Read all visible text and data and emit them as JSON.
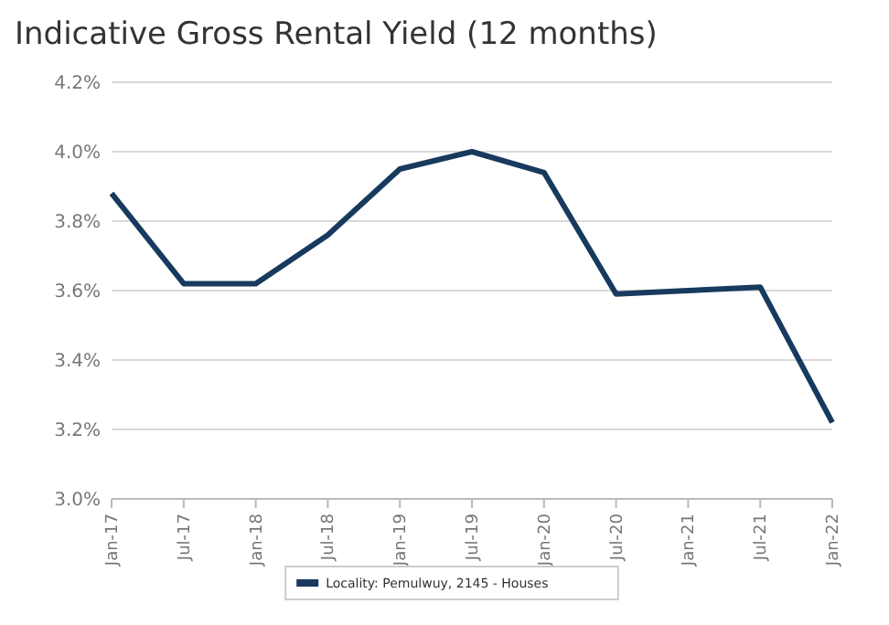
{
  "chart_data": {
    "type": "line",
    "title": "Indicative Gross Rental Yield (12 months)",
    "categories": [
      "Jan-17",
      "Jul-17",
      "Jan-18",
      "Jul-18",
      "Jan-19",
      "Jul-19",
      "Jan-20",
      "Jul-20",
      "Jan-21",
      "Jul-21",
      "Jan-22"
    ],
    "series": [
      {
        "name": "Locality: Pemulwuy, 2145 - Houses",
        "color": "#173a5e",
        "values": [
          3.88,
          3.62,
          3.62,
          3.76,
          3.95,
          4.0,
          3.94,
          3.59,
          3.6,
          3.61,
          3.22
        ]
      }
    ],
    "ylim": [
      3.0,
      4.2
    ],
    "yticks": [
      {
        "value": 3.0,
        "label": "3.0%"
      },
      {
        "value": 3.2,
        "label": "3.2%"
      },
      {
        "value": 3.4,
        "label": "3.4%"
      },
      {
        "value": 3.6,
        "label": "3.6%"
      },
      {
        "value": 3.8,
        "label": "3.8%"
      },
      {
        "value": 4.0,
        "label": "4.0%"
      },
      {
        "value": 4.2,
        "label": "4.2%"
      }
    ],
    "grid": "y",
    "legend": "bottom",
    "marker": "none",
    "line_style": "solid"
  }
}
